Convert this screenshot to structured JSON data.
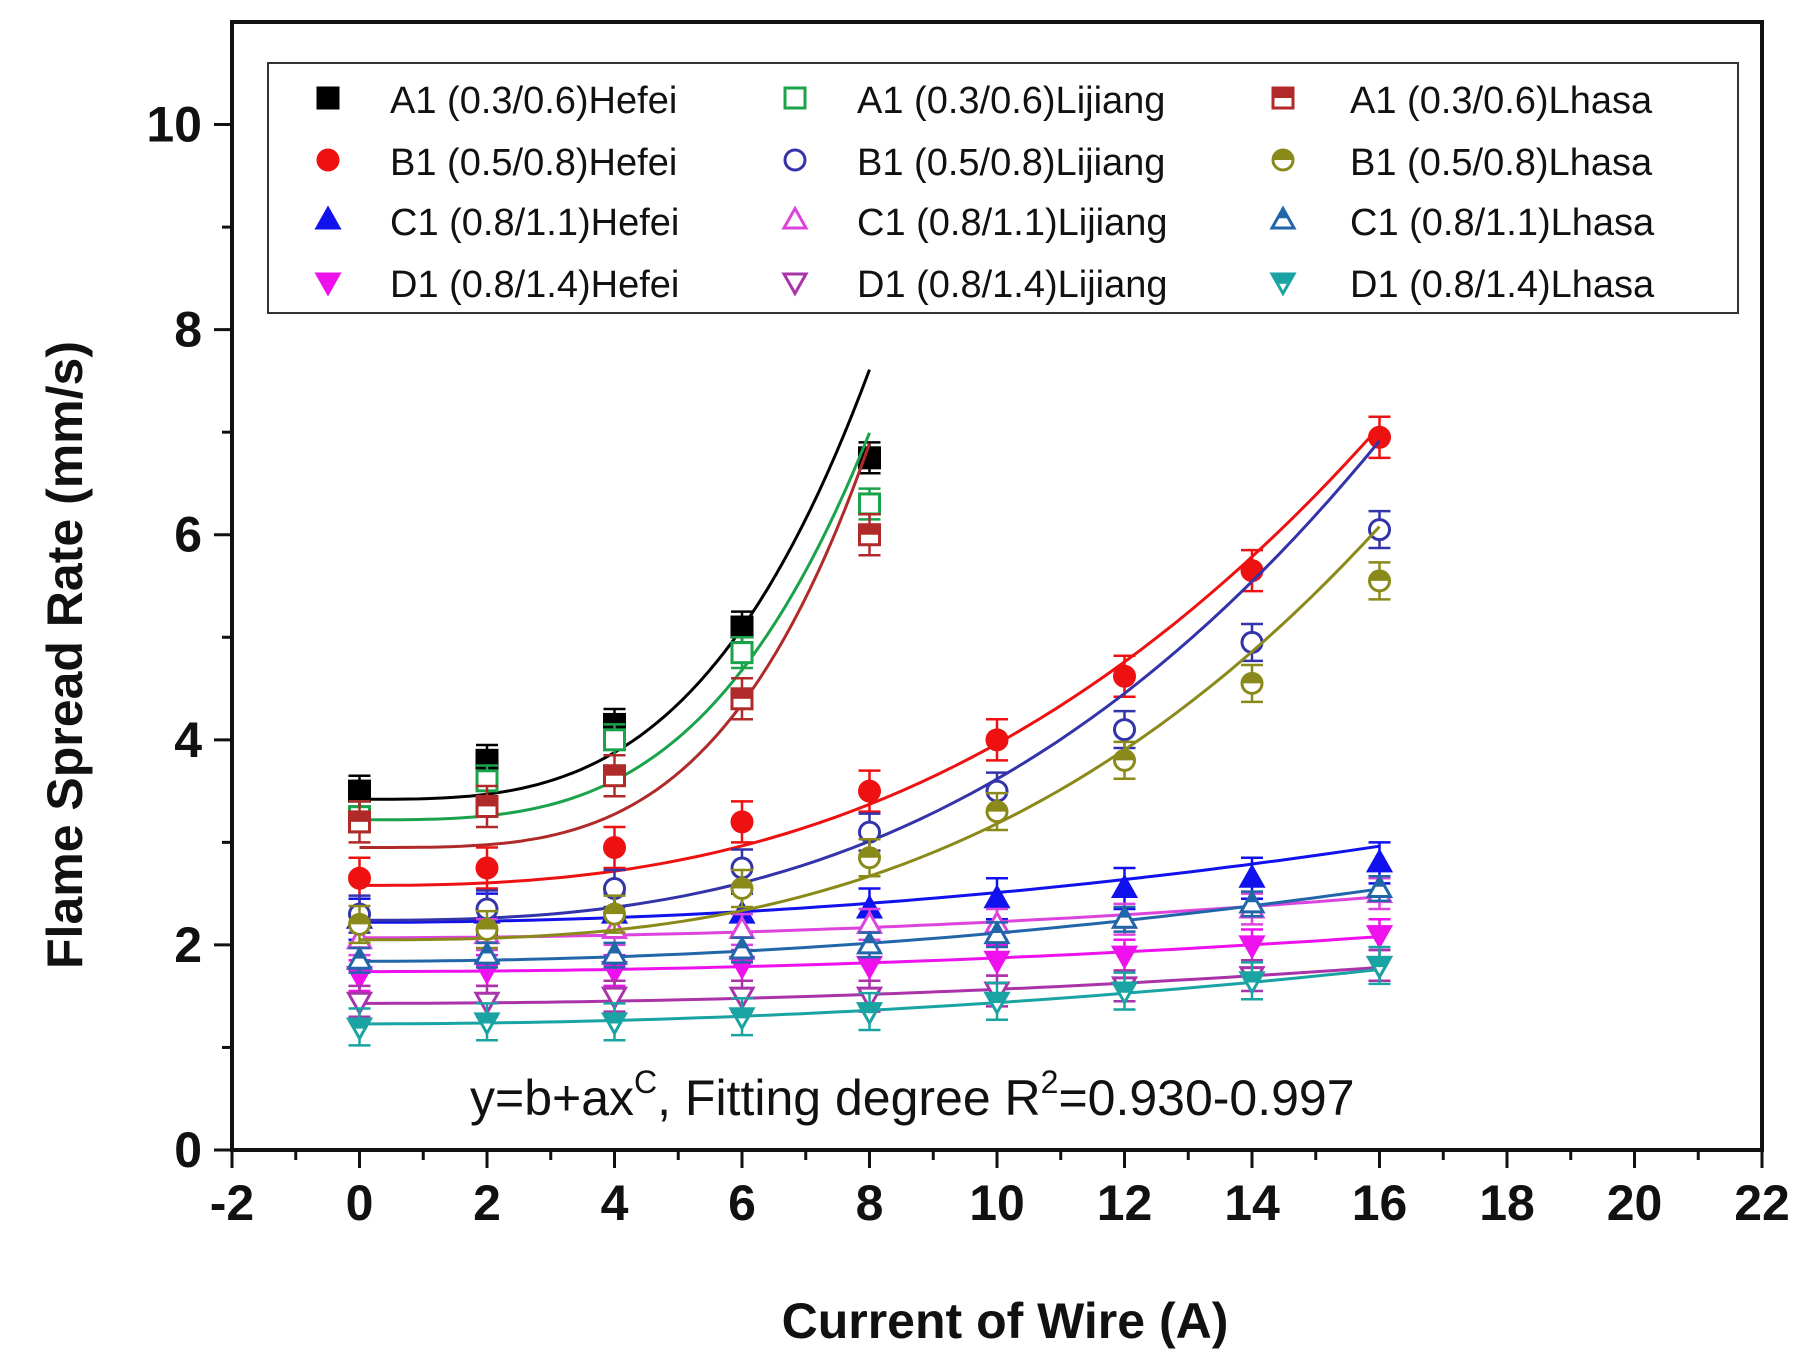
{
  "chart_data": {
    "type": "scatter",
    "title": "",
    "xlabel": "Current of Wire (A)",
    "ylabel": "Flame Spread Rate (mm/s)",
    "xlim": [
      -2,
      22
    ],
    "ylim": [
      0,
      11
    ],
    "x_ticks": [
      -2,
      0,
      2,
      4,
      6,
      8,
      10,
      12,
      14,
      16,
      18,
      20,
      22
    ],
    "y_ticks": [
      0,
      2,
      4,
      6,
      8,
      10
    ],
    "annotation": {
      "base": "y=b+ax",
      "sup1": "C",
      "middle": ", Fitting degree R",
      "sup2": "2",
      "end": "=0.930-0.997"
    },
    "legend_position": "top",
    "series": [
      {
        "name": "A1 (0.3/0.6)Hefei",
        "color": "#000000",
        "marker": "square",
        "filled": true,
        "x": [
          0,
          2,
          4,
          6,
          8
        ],
        "y": [
          3.5,
          3.8,
          4.15,
          5.1,
          6.75
        ],
        "err": 0.15,
        "fit": {
          "b": 3.42,
          "a": 0.0054,
          "c": 3.2
        }
      },
      {
        "name": "B1 (0.5/0.8)Hefei",
        "color": "#ee1111",
        "marker": "circle",
        "filled": true,
        "x": [
          0,
          2,
          4,
          6,
          8,
          10,
          12,
          14,
          16
        ],
        "y": [
          2.65,
          2.75,
          2.95,
          3.2,
          3.5,
          4.0,
          4.62,
          5.65,
          6.95
        ],
        "err": 0.2,
        "fit": {
          "b": 2.58,
          "a": 0.00437,
          "c": 2.5
        }
      },
      {
        "name": "C1 (0.8/1.1)Hefei",
        "color": "#1111ee",
        "marker": "triangle-up",
        "filled": true,
        "x": [
          0,
          2,
          4,
          6,
          8,
          10,
          12,
          14,
          16
        ],
        "y": [
          2.25,
          2.3,
          2.3,
          2.3,
          2.35,
          2.45,
          2.55,
          2.65,
          2.8
        ],
        "err": 0.2,
        "fit": {
          "b": 2.22,
          "a": 0.0029,
          "c": 2.0
        }
      },
      {
        "name": "D1 (0.8/1.4)Hefei",
        "color": "#ee11ee",
        "marker": "triangle-down",
        "filled": true,
        "x": [
          0,
          2,
          4,
          6,
          8,
          10,
          12,
          14,
          16
        ],
        "y": [
          1.7,
          1.75,
          1.75,
          1.8,
          1.8,
          1.85,
          1.9,
          2.0,
          2.1
        ],
        "err": 0.15,
        "fit": {
          "b": 1.74,
          "a": 0.00133,
          "c": 2.0
        }
      },
      {
        "name": "A1 (0.3/0.6)Lijiang",
        "color": "#1aa34a",
        "marker": "square",
        "filled": false,
        "x": [
          0,
          2,
          4,
          6,
          8
        ],
        "y": [
          3.25,
          3.6,
          4.0,
          4.85,
          6.3
        ],
        "err": 0.15,
        "fit": {
          "b": 3.22,
          "a": 0.00395,
          "c": 3.3
        }
      },
      {
        "name": "B1 (0.5/0.8)Lijiang",
        "color": "#3333aa",
        "marker": "circle",
        "filled": false,
        "x": [
          0,
          2,
          4,
          6,
          8,
          10,
          12,
          14,
          16
        ],
        "y": [
          2.3,
          2.35,
          2.55,
          2.75,
          3.1,
          3.5,
          4.1,
          4.95,
          6.05
        ],
        "err": 0.18,
        "fit": {
          "b": 2.24,
          "a": 0.00346,
          "c": 2.6
        }
      },
      {
        "name": "C1 (0.8/1.1)Lijiang",
        "color": "#dd44dd",
        "marker": "triangle-up",
        "filled": false,
        "x": [
          0,
          2,
          4,
          6,
          8,
          10,
          12,
          14,
          16
        ],
        "y": [
          2.05,
          2.1,
          2.15,
          2.15,
          2.2,
          2.2,
          2.25,
          2.35,
          2.5
        ],
        "err": 0.15,
        "fit": {
          "b": 2.07,
          "a": 0.00156,
          "c": 2.0
        }
      },
      {
        "name": "D1 (0.8/1.4)Lijiang",
        "color": "#aa33aa",
        "marker": "triangle-down",
        "filled": false,
        "x": [
          0,
          2,
          4,
          6,
          8,
          10,
          12,
          14,
          16
        ],
        "y": [
          1.45,
          1.45,
          1.5,
          1.5,
          1.5,
          1.55,
          1.6,
          1.7,
          1.8
        ],
        "err": 0.15,
        "fit": {
          "b": 1.43,
          "a": 0.00137,
          "c": 2.0
        }
      },
      {
        "name": "A1 (0.3/0.6)Lhasa",
        "color": "#b02a2a",
        "marker": "square-half",
        "filled": true,
        "x": [
          0,
          2,
          4,
          6,
          8
        ],
        "y": [
          3.2,
          3.35,
          3.65,
          4.4,
          6.0
        ],
        "err": 0.2,
        "fit": {
          "b": 2.95,
          "a": 0.00221,
          "c": 3.6
        }
      },
      {
        "name": "B1 (0.5/0.8)Lhasa",
        "color": "#8a8a1a",
        "marker": "circle-half",
        "filled": true,
        "x": [
          0,
          2,
          4,
          6,
          8,
          10,
          12,
          14,
          16
        ],
        "y": [
          2.2,
          2.15,
          2.3,
          2.55,
          2.85,
          3.3,
          3.8,
          4.55,
          5.55
        ],
        "err": 0.18,
        "fit": {
          "b": 2.05,
          "a": 0.00226,
          "c": 2.7
        }
      },
      {
        "name": "C1 (0.8/1.1)Lhasa",
        "color": "#2266aa",
        "marker": "triangle-up-half",
        "filled": true,
        "x": [
          0,
          2,
          4,
          6,
          8,
          10,
          12,
          14,
          16
        ],
        "y": [
          1.85,
          1.9,
          1.9,
          1.95,
          2.0,
          2.1,
          2.25,
          2.4,
          2.55
        ],
        "err": 0.12,
        "fit": {
          "b": 1.84,
          "a": 0.00276,
          "c": 2.0
        }
      },
      {
        "name": "D1 (0.8/1.4)Lhasa",
        "color": "#1aa3a3",
        "marker": "triangle-down-half",
        "filled": true,
        "x": [
          0,
          2,
          4,
          6,
          8,
          10,
          12,
          14,
          16
        ],
        "y": [
          1.2,
          1.25,
          1.25,
          1.3,
          1.35,
          1.45,
          1.55,
          1.65,
          1.8
        ],
        "err": 0.18,
        "fit": {
          "b": 1.23,
          "a": 0.00207,
          "c": 2.0
        }
      }
    ]
  }
}
